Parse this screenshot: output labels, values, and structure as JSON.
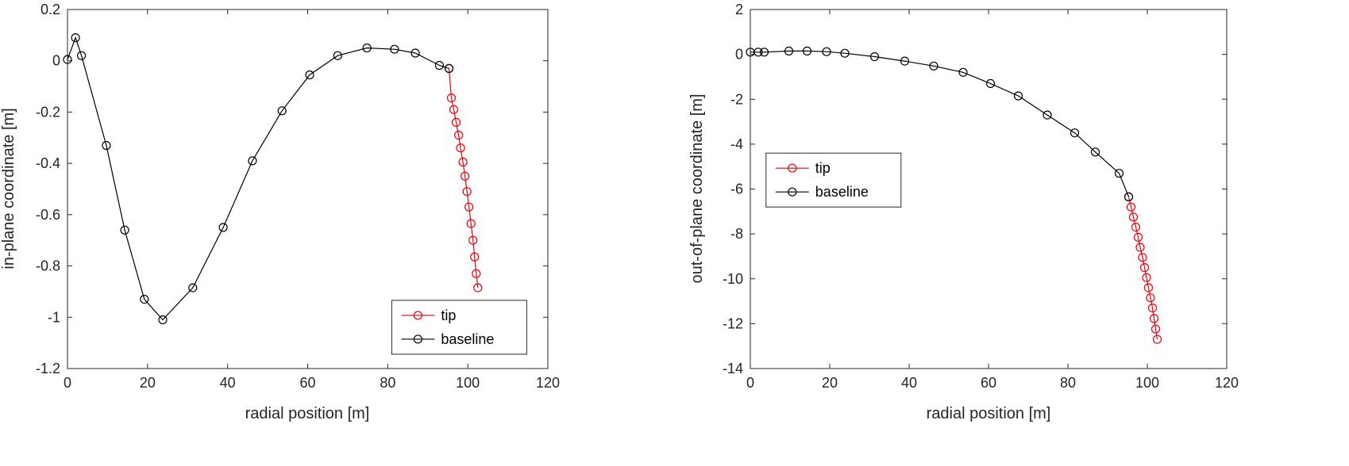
{
  "figure": {
    "background": "#ffffff"
  },
  "style": {
    "axis_color": "#262626",
    "text_color": "#252525",
    "tip_color": "#e8000b",
    "baseline_color": "#000000"
  },
  "chart_data": [
    {
      "type": "line",
      "title": "",
      "xlabel": "radial position [m]",
      "ylabel": "in-plane coordinate [m]",
      "xlim": [
        0,
        120
      ],
      "ylim": [
        -1.2,
        0.2
      ],
      "grid": false,
      "xticks": [
        0,
        20,
        40,
        60,
        80,
        100,
        120
      ],
      "xtick_labels": [
        "0",
        "20",
        "40",
        "60",
        "80",
        "100",
        "120"
      ],
      "yticks": [
        0.2,
        0,
        -0.2,
        -0.4,
        -0.6,
        -0.8,
        -1,
        -1.2
      ],
      "ytick_labels": [
        "0.2",
        "0",
        "-0.2",
        "-0.4",
        "-0.6",
        "-0.8",
        "-1",
        "-1.2"
      ],
      "legend": {
        "entries": [
          "tip",
          "baseline"
        ],
        "position": "bottom-right",
        "anchor": [
          0.675,
          0.81
        ]
      },
      "series": [
        {
          "name": "tip",
          "color": "#e8000b",
          "marker": "circle",
          "x": [
            95.3,
            95.9,
            96.5,
            97.1,
            97.7,
            98.2,
            98.8,
            99.3,
            99.8,
            100.3,
            100.8,
            101.3,
            101.7,
            102.1,
            102.5
          ],
          "y": [
            -0.03,
            -0.145,
            -0.19,
            -0.24,
            -0.29,
            -0.34,
            -0.395,
            -0.45,
            -0.51,
            -0.57,
            -0.635,
            -0.7,
            -0.765,
            -0.83,
            -0.885
          ]
        },
        {
          "name": "baseline",
          "color": "#000000",
          "marker": "circle",
          "x": [
            0,
            2,
            3.5,
            9.7,
            14.3,
            19.2,
            23.8,
            31.3,
            38.9,
            46.2,
            53.6,
            60.5,
            67.5,
            74.8,
            81.7,
            86.9,
            92.9,
            95.3
          ],
          "y": [
            0.005,
            0.09,
            0.02,
            -0.33,
            -0.66,
            -0.93,
            -1.01,
            -0.885,
            -0.65,
            -0.39,
            -0.195,
            -0.055,
            0.02,
            0.05,
            0.045,
            0.03,
            -0.018,
            -0.03
          ]
        }
      ]
    },
    {
      "type": "line",
      "title": "",
      "xlabel": "radial position [m]",
      "ylabel": "out-of-plane coordinate [m]",
      "xlim": [
        0,
        120
      ],
      "ylim": [
        -14,
        2
      ],
      "grid": false,
      "xticks": [
        0,
        20,
        40,
        60,
        80,
        100,
        120
      ],
      "xtick_labels": [
        "0",
        "20",
        "40",
        "60",
        "80",
        "100",
        "120"
      ],
      "yticks": [
        2,
        0,
        -2,
        -4,
        -6,
        -8,
        -10,
        -12,
        -14
      ],
      "ytick_labels": [
        "2",
        "0",
        "-2",
        "-4",
        "-6",
        "-8",
        "-10",
        "-12",
        "-14"
      ],
      "legend": {
        "entries": [
          "tip",
          "baseline"
        ],
        "position": "center-left",
        "anchor": [
          0.033,
          0.4
        ]
      },
      "series": [
        {
          "name": "tip",
          "color": "#e8000b",
          "marker": "circle",
          "x": [
            95.3,
            95.9,
            96.5,
            97.1,
            97.7,
            98.2,
            98.8,
            99.3,
            99.8,
            100.3,
            100.8,
            101.3,
            101.7,
            102.1,
            102.5
          ],
          "y": [
            -6.35,
            -6.8,
            -7.25,
            -7.7,
            -8.15,
            -8.6,
            -9.05,
            -9.5,
            -9.95,
            -10.4,
            -10.85,
            -11.3,
            -11.77,
            -12.24,
            -12.7
          ]
        },
        {
          "name": "baseline",
          "color": "#000000",
          "marker": "circle",
          "x": [
            0,
            2,
            3.5,
            9.7,
            14.3,
            19.2,
            23.8,
            31.3,
            38.9,
            46.2,
            53.6,
            60.5,
            67.5,
            74.8,
            81.7,
            86.9,
            92.9,
            95.3
          ],
          "y": [
            0.1,
            0.1,
            0.1,
            0.15,
            0.15,
            0.12,
            0.05,
            -0.1,
            -0.3,
            -0.52,
            -0.8,
            -1.3,
            -1.85,
            -2.7,
            -3.5,
            -4.35,
            -5.3,
            -6.35
          ]
        }
      ]
    }
  ]
}
